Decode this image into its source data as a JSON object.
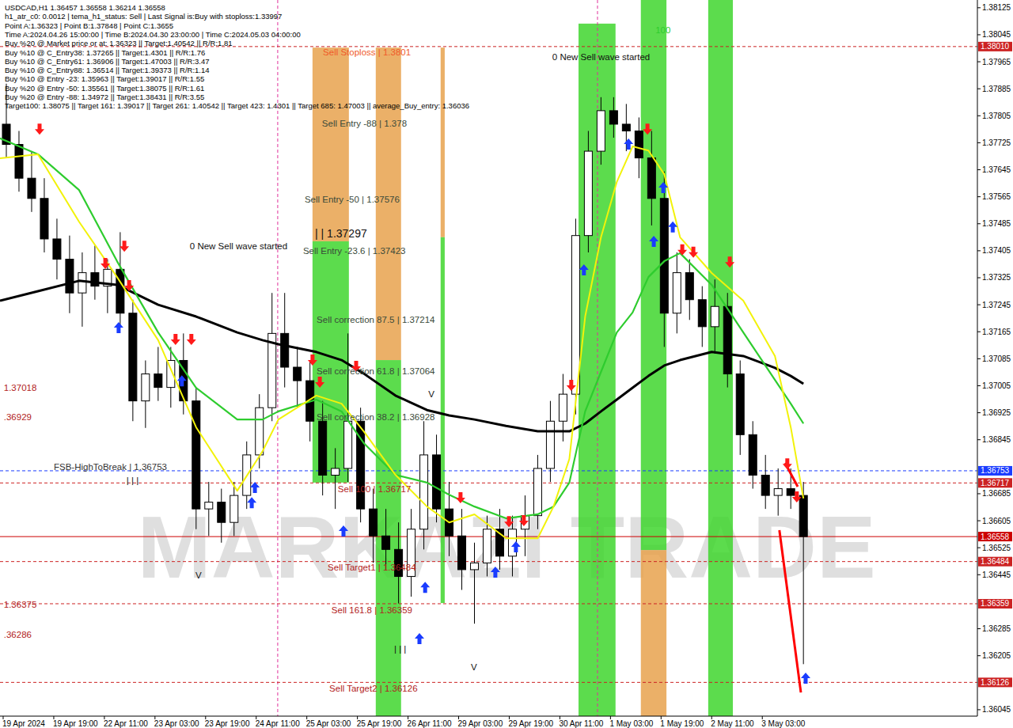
{
  "chart_data": {
    "type": "candlestick",
    "header": [
      "USDCAD,H1  1.36457 1.36558 1.36214 1.36558",
      "h1_atr_c0: 0.0012 | tema_h1_status: Sell | Last Signal is:Buy with stoploss:1.33997",
      "Point A:1.36323 | Point B:1.37848 | Point C:1.3655",
      "Time A:2024.04.26 15:00:00 | Time B:2024.04.30 23:00:00 | Time C:2024.05.03 04:00:00",
      "Buy %20 @ Market price or at: 1.36323 || Target:1.40542 || R/R:1.81",
      "Buy %10 @ C_Entry38: 1.37265 || Target:1.4301 || R/R:1.76",
      "Buy %10 @ C_Entry61: 1.36906 || Target:1.47003 || R/R:3.47",
      "Buy %10 @ C_Entry88: 1.36514 || Target:1.39373 || R/R:1.14",
      "Buy %10 @ Entry -23: 1.35963 || Target:1.39017 || R/R:1.55",
      "Buy %20 @ Entry -50: 1.35561 || Target:1.38075 || R/R:1.61",
      "Buy %20 @ Entry -88: 1.34972 || Target:1.38431 || R/R:3.55",
      "Target100: 1.38075 || Target 161: 1.39017 || Target 261: 1.40542 || Target 423: 1.4301 || Target 685: 1.47003 || average_Buy_entry: 1.36036"
    ],
    "watermark": "MARKAZI TRADE",
    "xlim": [
      0,
      309
    ],
    "ylim": [
      1.36026,
      1.38148
    ],
    "xticks": [
      {
        "value": 1,
        "label": "19 Apr 2024"
      },
      {
        "value": 17,
        "label": "19 Apr 19:00"
      },
      {
        "value": 33,
        "label": "22 Apr 11:00"
      },
      {
        "value": 49,
        "label": "23 Apr 03:00"
      },
      {
        "value": 65,
        "label": "23 Apr 19:00"
      },
      {
        "value": 81,
        "label": "24 Apr 11:00"
      },
      {
        "value": 97,
        "label": "25 Apr 03:00"
      },
      {
        "value": 113,
        "label": "25 Apr 19:00"
      },
      {
        "value": 129,
        "label": "26 Apr 11:00"
      },
      {
        "value": 145,
        "label": "29 Apr 03:00"
      },
      {
        "value": 161,
        "label": "29 Apr 19:00"
      },
      {
        "value": 177,
        "label": "30 Apr 11:00"
      },
      {
        "value": 193,
        "label": "1 May 03:00"
      },
      {
        "value": 209,
        "label": "1 May 19:00"
      },
      {
        "value": 225,
        "label": "2 May 11:00"
      },
      {
        "value": 241,
        "label": "3 May 03:00"
      }
    ],
    "yticks": [
      1.38125,
      1.38045,
      1.37965,
      1.37885,
      1.37805,
      1.37725,
      1.37645,
      1.37565,
      1.37485,
      1.37405,
      1.37325,
      1.37245,
      1.37165,
      1.37085,
      1.37005,
      1.36925,
      1.36845,
      1.36685,
      1.36605,
      1.36525,
      1.36445,
      1.36285,
      1.36205,
      1.36045
    ],
    "candles": {
      "color": "#000000",
      "x": [
        2,
        6,
        10,
        14,
        18,
        22,
        26,
        30,
        34,
        38,
        42,
        46,
        50,
        54,
        58,
        62,
        66,
        70,
        74,
        78,
        82,
        86,
        90,
        94,
        98,
        102,
        106,
        110,
        114,
        118,
        122,
        126,
        130,
        134,
        138,
        142,
        146,
        150,
        154,
        158,
        162,
        166,
        170,
        174,
        178,
        182,
        186,
        190,
        194,
        198,
        202,
        206,
        210,
        214,
        218,
        222,
        226,
        230,
        234,
        238,
        242,
        246,
        250,
        254
      ],
      "open": [
        1.3778,
        1.3772,
        1.3762,
        1.3756,
        1.3744,
        1.3738,
        1.3728,
        1.3734,
        1.373,
        1.3735,
        1.3722,
        1.3696,
        1.3704,
        1.37,
        1.3708,
        1.3696,
        1.3664,
        1.3666,
        1.366,
        1.3668,
        1.368,
        1.3694,
        1.3716,
        1.3706,
        1.3702,
        1.369,
        1.3674,
        1.3676,
        1.369,
        1.3664,
        1.3656,
        1.3652,
        1.3644,
        1.3658,
        1.368,
        1.3664,
        1.3656,
        1.3646,
        1.3648,
        1.3658,
        1.365,
        1.3658,
        1.3662,
        1.3676,
        1.369,
        1.3698,
        1.3745,
        1.377,
        1.3782,
        1.3778,
        1.3776,
        1.3768,
        1.3756,
        1.3722,
        1.3734,
        1.3726,
        1.3718,
        1.3724,
        1.3704,
        1.3686,
        1.3674,
        1.3668,
        1.367,
        1.3668
      ],
      "high": [
        1.379,
        1.3776,
        1.377,
        1.3762,
        1.375,
        1.3745,
        1.374,
        1.3742,
        1.3738,
        1.3746,
        1.3726,
        1.3708,
        1.3712,
        1.3712,
        1.3716,
        1.37,
        1.3672,
        1.367,
        1.3672,
        1.3684,
        1.3698,
        1.3728,
        1.3728,
        1.3712,
        1.3708,
        1.3696,
        1.3682,
        1.3716,
        1.3694,
        1.367,
        1.3664,
        1.366,
        1.3664,
        1.369,
        1.3686,
        1.3672,
        1.3664,
        1.3654,
        1.3662,
        1.3664,
        1.3662,
        1.3668,
        1.368,
        1.3696,
        1.3704,
        1.375,
        1.3776,
        1.3786,
        1.3786,
        1.3784,
        1.378,
        1.3776,
        1.3764,
        1.374,
        1.3738,
        1.373,
        1.3732,
        1.3728,
        1.3708,
        1.369,
        1.368,
        1.3676,
        1.3676,
        1.3672
      ],
      "low": [
        1.3768,
        1.3758,
        1.3752,
        1.374,
        1.3732,
        1.3722,
        1.3718,
        1.3726,
        1.3722,
        1.3718,
        1.369,
        1.3688,
        1.3696,
        1.3694,
        1.3692,
        1.3658,
        1.3656,
        1.3654,
        1.3656,
        1.3664,
        1.3676,
        1.369,
        1.37,
        1.3694,
        1.3684,
        1.3668,
        1.3664,
        1.3672,
        1.366,
        1.3648,
        1.3646,
        1.3636,
        1.3638,
        1.3652,
        1.366,
        1.365,
        1.364,
        1.363,
        1.3644,
        1.3646,
        1.3644,
        1.365,
        1.3658,
        1.3672,
        1.3684,
        1.3692,
        1.374,
        1.3766,
        1.3774,
        1.377,
        1.3762,
        1.3748,
        1.3712,
        1.3716,
        1.372,
        1.3712,
        1.371,
        1.37,
        1.368,
        1.367,
        1.3664,
        1.3662,
        1.3664,
        1.3618
      ],
      "close": [
        1.3772,
        1.3762,
        1.3756,
        1.3744,
        1.3738,
        1.3728,
        1.3734,
        1.373,
        1.3735,
        1.3722,
        1.3696,
        1.3704,
        1.37,
        1.3708,
        1.3696,
        1.3664,
        1.3666,
        1.366,
        1.3668,
        1.368,
        1.3694,
        1.3716,
        1.3706,
        1.3702,
        1.369,
        1.3674,
        1.3676,
        1.369,
        1.3664,
        1.3656,
        1.3652,
        1.3644,
        1.3658,
        1.368,
        1.3664,
        1.3656,
        1.3646,
        1.3648,
        1.3658,
        1.365,
        1.3658,
        1.3662,
        1.3676,
        1.369,
        1.3698,
        1.3745,
        1.377,
        1.3782,
        1.3778,
        1.3776,
        1.3768,
        1.3756,
        1.3722,
        1.3734,
        1.3726,
        1.3718,
        1.3724,
        1.3704,
        1.3686,
        1.3674,
        1.3668,
        1.367,
        1.3668,
        1.36558
      ]
    },
    "lines": [
      {
        "color": "#000000",
        "x": [
          0,
          12,
          25,
          37,
          50,
          62,
          75,
          83,
          88,
          100,
          108,
          115,
          125,
          135,
          142,
          150,
          160,
          170,
          175,
          180,
          185,
          190,
          195,
          200,
          205,
          210,
          215,
          225,
          235,
          245,
          250,
          254
        ],
        "values": [
          1.37257,
          1.37285,
          1.37316,
          1.37304,
          1.37245,
          1.3721,
          1.37163,
          1.3714,
          1.37128,
          1.37105,
          1.37081,
          1.37041,
          1.36976,
          1.36933,
          1.36917,
          1.36905,
          1.36886,
          1.3687,
          1.3687,
          1.3687,
          1.36893,
          1.36929,
          1.36964,
          1.36999,
          1.37034,
          1.37065,
          1.37081,
          1.37105,
          1.37093,
          1.37058,
          1.37034,
          1.37011
        ]
      },
      {
        "color": "#2ecc2e",
        "x": [
          0,
          12,
          25,
          37,
          50,
          62,
          75,
          83,
          88,
          100,
          108,
          115,
          125,
          135,
          142,
          150,
          160,
          170,
          175,
          180,
          185,
          190,
          195,
          200,
          205,
          210,
          215,
          225,
          235,
          245,
          250,
          254
        ],
        "values": [
          1.37738,
          1.37691,
          1.37585,
          1.37374,
          1.37163,
          1.36999,
          1.36905,
          1.36905,
          1.36929,
          1.36964,
          1.36929,
          1.36835,
          1.36741,
          1.36718,
          1.36682,
          1.36647,
          1.36612,
          1.36624,
          1.36647,
          1.36718,
          1.36929,
          1.37046,
          1.37163,
          1.37222,
          1.37327,
          1.37374,
          1.37398,
          1.37304,
          1.37163,
          1.37022,
          1.36952,
          1.36893
        ]
      },
      {
        "color": "#f2f20a",
        "x": [
          0,
          12,
          25,
          37,
          50,
          62,
          75,
          83,
          88,
          100,
          108,
          115,
          125,
          135,
          142,
          150,
          160,
          170,
          175,
          180,
          185,
          190,
          195,
          200,
          205,
          210,
          215,
          225,
          235,
          245,
          250,
          254
        ],
        "values": [
          1.37679,
          1.37691,
          1.37491,
          1.37327,
          1.3714,
          1.36882,
          1.36694,
          1.36811,
          1.36905,
          1.36976,
          1.36952,
          1.3687,
          1.36741,
          1.36647,
          1.366,
          1.36624,
          1.36553,
          1.36553,
          1.36647,
          1.36788,
          1.3721,
          1.37445,
          1.37609,
          1.37714,
          1.37702,
          1.37632,
          1.37445,
          1.37339,
          1.37257,
          1.37093,
          1.36882,
          1.36671
        ]
      }
    ],
    "bands": [
      {
        "x": [
          98.8,
          110.3
        ],
        "y": [
          1.38007,
          1.37433
        ],
        "color": "#e8a24e"
      },
      {
        "x": [
          98.8,
          110.3
        ],
        "y": [
          1.37433,
          1.36718
        ],
        "color": "#3fd62e"
      },
      {
        "x": [
          118.8,
          126.8
        ],
        "y": [
          1.38007,
          1.37081
        ],
        "color": "#e8a24e"
      },
      {
        "x": [
          118.8,
          126.8
        ],
        "y": [
          1.37081,
          1.36026
        ],
        "color": "#3fd62e"
      },
      {
        "x": [
          139.3,
          140.6
        ],
        "y": [
          1.38007,
          1.37445
        ],
        "color": "#e8a24e"
      },
      {
        "x": [
          139.3,
          140.6
        ],
        "y": [
          1.37445,
          1.36361
        ],
        "color": "#3fd62e"
      },
      {
        "x": [
          182.9,
          194.6
        ],
        "y": [
          1.38078,
          1.36026
        ],
        "color": "#3fd62e"
      },
      {
        "x": [
          202.6,
          210.7
        ],
        "y": [
          1.38148,
          1.36518
        ],
        "color": "#3fd62e"
      },
      {
        "x": [
          202.6,
          210.7
        ],
        "y": [
          1.36518,
          1.36026
        ],
        "color": "#e8a24e"
      },
      {
        "x": [
          223.9,
          231.7
        ],
        "y": [
          1.38148,
          1.36026
        ],
        "color": "#3fd62e"
      }
    ],
    "vlines": {
      "color": "#e0309a",
      "line_style": "dashed",
      "values": [
        87.8,
        188.9
      ]
    },
    "levels": [
      {
        "value": 1.3801,
        "label": "1.38010",
        "color": "#cc2222",
        "line_style": "dashed"
      },
      {
        "value": 1.36753,
        "label": "1.36753",
        "color": "#1a3cff",
        "line_style": "dashed"
      },
      {
        "value": 1.36717,
        "label": "1.36717",
        "color": "#cc2222",
        "line_style": "dashed"
      },
      {
        "value": 1.36558,
        "label": "1.36558",
        "color": "#cc0000",
        "line_style": "solid"
      },
      {
        "value": 1.36484,
        "label": "1.36484",
        "color": "#cc2222",
        "line_style": "dashed"
      },
      {
        "value": 1.36359,
        "label": "1.36359",
        "color": "#cc2222",
        "line_style": "dashed"
      },
      {
        "value": 1.36126,
        "label": "1.36126",
        "color": "#cc2222",
        "line_style": "dashed"
      }
    ],
    "trend_lines": [
      {
        "color": "#ff0000",
        "x": [
          246.4,
          253.2
        ],
        "values": [
          1.36577,
          1.36096
        ]
      },
      {
        "color": "#ff0000",
        "x": [
          248.2,
          252.2
        ],
        "values": [
          1.36776,
          1.36706
        ]
      }
    ],
    "signals": [
      {
        "marker": "arrow-down",
        "color": "#ff1a1a",
        "x": [
          12.5,
          33.3,
          39.3,
          40.8,
          55.5,
          60.5,
          98.8,
          101.1,
          112.6,
          145.6,
          160.9,
          165.6,
          180.6,
          204.7,
          215.7,
          219.2,
          230.7,
          248.9,
          251.9
        ],
        "values": [
          1.37749,
          1.37351,
          1.37402,
          1.37285,
          1.37126,
          1.37126,
          1.37065,
          1.36999,
          1.37046,
          1.36657,
          1.36586,
          1.36589,
          1.3699,
          1.37749,
          1.37391,
          1.37384,
          1.37355,
          1.36757,
          1.36659
        ]
      },
      {
        "marker": "arrow-up",
        "color": "#1a3cff",
        "x": [
          37.5,
          57.5,
          79.6,
          80.6,
          108.6,
          132.6,
          134.4,
          156.6,
          163.1,
          184.6,
          198.7,
          206.7,
          209.7,
          212.7,
          254.7
        ],
        "values": [
          1.37194,
          1.37036,
          1.36675,
          1.3672,
          1.36591,
          1.36272,
          1.36424,
          1.36469,
          1.36544,
          1.37365,
          1.37738,
          1.37449,
          1.37609,
          1.37492,
          1.36155
        ]
      }
    ],
    "annotations": [
      {
        "text": "Sell Stoploss | 1.3801",
        "x": 102.1,
        "y": 1.37993,
        "color": "#f05a28"
      },
      {
        "text": "Sell Entry -88 | 1.378",
        "x": 101.8,
        "y": 1.37782,
        "color": "#3a4a3a"
      },
      {
        "text": "Sell Entry -50 | 1.37576",
        "x": 96.3,
        "y": 1.37557,
        "color": "#3a4a3a"
      },
      {
        "text": "Sell Entry -23.6 | 1.37423",
        "x": 95.8,
        "y": 1.37405,
        "color": "#3a4a3a"
      },
      {
        "text": "| | 1.37297",
        "x": 99.6,
        "y": 1.37455,
        "color": "#111111"
      },
      {
        "text": "0 New Sell wave started",
        "x": 60.0,
        "y": 1.37419,
        "color": "#111111"
      },
      {
        "text": "0 New Sell wave started",
        "x": 174.6,
        "y": 1.37979,
        "color": "#111111"
      },
      {
        "text": "Sell correction 87.5 | 1.37214",
        "x": 100.1,
        "y": 1.37201,
        "color": "#3a4a3a"
      },
      {
        "text": "Sell correction 61.8 | 1.37064",
        "x": 100.1,
        "y": 1.37048,
        "color": "#3a4a3a"
      },
      {
        "text": "Sell correction 38.2 | 1.36928",
        "x": 100.1,
        "y": 1.36912,
        "color": "#3a4a3a"
      },
      {
        "text": "Sell 100 | 1.36717",
        "x": 106.8,
        "y": 1.36699,
        "color": "#b22222"
      },
      {
        "text": "Sell Target1 | 1.36484",
        "x": 103.6,
        "y": 1.36467,
        "color": "#b22222"
      },
      {
        "text": "Sell 161.8 | 1.36359",
        "x": 104.8,
        "y": 1.3634,
        "color": "#b22222"
      },
      {
        "text": "Sell Target2 | 1.36126",
        "x": 104.1,
        "y": 1.36108,
        "color": "#b22222"
      },
      {
        "text": "FSB-HighToBreak | 1.36753",
        "x": 17.0,
        "y": 1.36764,
        "color": "#333333"
      },
      {
        "text": "100",
        "x": 207.2,
        "y": 1.38059,
        "color": "#2ecc2e"
      },
      {
        "text": "1.37018",
        "x": 1.2,
        "y": 1.36999,
        "color": "#b22222"
      },
      {
        "text": ".36929",
        "x": 1.2,
        "y": 1.36912,
        "color": "#b22222"
      },
      {
        "text": "1.36375",
        "x": 1.2,
        "y": 1.36356,
        "color": "#b22222"
      },
      {
        "text": ".36286",
        "x": 1.2,
        "y": 1.36267,
        "color": "#b22222"
      },
      {
        "text": "| | |",
        "x": 40.0,
        "y": 1.36725,
        "color": "#111111"
      },
      {
        "text": "| | |",
        "x": 124.6,
        "y": 1.36225,
        "color": "#111111"
      },
      {
        "text": "V",
        "x": 61.8,
        "y": 1.36443,
        "color": "#111111"
      },
      {
        "text": "V",
        "x": 148.9,
        "y": 1.36171,
        "color": "#111111"
      },
      {
        "text": "V",
        "x": 135.4,
        "y": 1.3698,
        "color": "#111111"
      }
    ]
  }
}
